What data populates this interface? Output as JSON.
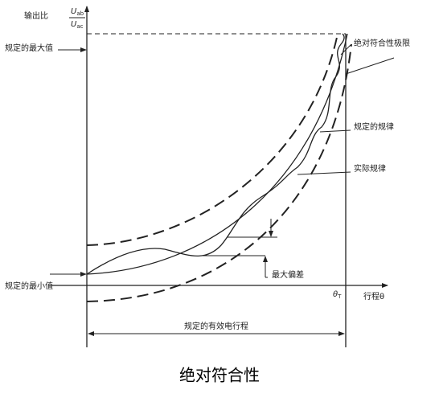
{
  "y_axis_label": {
    "prefix": "输出比",
    "numerator": "U",
    "numerator_sub": "ab",
    "denominator": "U",
    "denominator_sub": "ac"
  },
  "left_labels": {
    "max": "规定的最大值",
    "min": "规定的最小值"
  },
  "annotations": {
    "conformity_limit": "绝对符合性极限",
    "specified_law": "规定的规律",
    "actual_law": "实际规律",
    "max_deviation": "最大偏差"
  },
  "x_axis": {
    "end_mark": "θ",
    "end_mark_sub": "T",
    "label": "行程θ"
  },
  "travel_label": "规定的有效电行程",
  "caption": "绝对符合性"
}
